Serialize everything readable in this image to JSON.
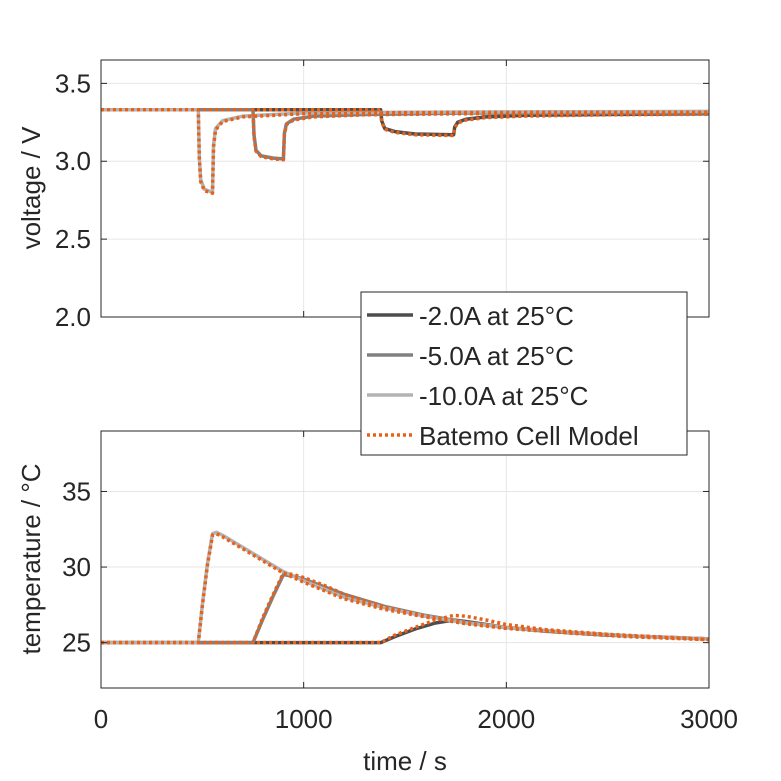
{
  "colors": {
    "minus2A": "#4d4d4d",
    "minus5A": "#808080",
    "minus10A": "#b3b3b3",
    "model": "#e8611a",
    "axis": "#262626",
    "grid": "#e6e6e6"
  },
  "legend": {
    "placement": "overlapping bottom-right of top panel",
    "entries": [
      "-2.0A at 25°C",
      "-5.0A at 25°C",
      "-10.0A at 25°C",
      "Batemo Cell Model"
    ]
  },
  "chart_data": [
    {
      "type": "line",
      "ylabel": "voltage / V",
      "xlim": [
        0,
        3000
      ],
      "ylim": [
        2.0,
        3.65
      ],
      "yticks": [
        2.0,
        2.5,
        3.0,
        3.5
      ],
      "ytick_labels": [
        "2.0",
        "2.5",
        "3.0",
        "3.5"
      ],
      "xticks": [
        0,
        1000,
        2000,
        3000
      ],
      "grid": true,
      "series": [
        {
          "name": "-2.0A at 25°C",
          "x": [
            0,
            1380,
            1385,
            1400,
            1450,
            1550,
            1740,
            1745,
            1760,
            1800,
            1900,
            2100,
            2500,
            3000
          ],
          "y": [
            3.33,
            3.33,
            3.26,
            3.21,
            3.19,
            3.175,
            3.17,
            3.22,
            3.25,
            3.27,
            3.285,
            3.295,
            3.3,
            3.305
          ]
        },
        {
          "name": "-5.0A at 25°C",
          "x": [
            0,
            750,
            755,
            765,
            790,
            850,
            900,
            905,
            915,
            950,
            1050,
            1300,
            1800,
            3000
          ],
          "y": [
            3.33,
            3.33,
            3.17,
            3.07,
            3.035,
            3.02,
            3.015,
            3.18,
            3.24,
            3.27,
            3.29,
            3.3,
            3.31,
            3.31
          ]
        },
        {
          "name": "-10.0A at 25°C",
          "x": [
            0,
            480,
            485,
            492,
            510,
            540,
            550,
            555,
            565,
            600,
            700,
            1000,
            1500,
            3000
          ],
          "y": [
            3.33,
            3.33,
            3.03,
            2.88,
            2.82,
            2.805,
            2.8,
            3.1,
            3.21,
            3.26,
            3.29,
            3.31,
            3.315,
            3.32
          ]
        },
        {
          "name": "Batemo Cell Model",
          "x": [
            0,
            480,
            485,
            492,
            510,
            540,
            550,
            555,
            565,
            600,
            700,
            1000,
            1500,
            3000
          ],
          "y": [
            3.33,
            3.33,
            3.02,
            2.87,
            2.81,
            2.8,
            2.795,
            3.09,
            3.2,
            3.255,
            3.285,
            3.305,
            3.312,
            3.315
          ]
        },
        {
          "name": "",
          "x": [
            0,
            750,
            755,
            765,
            790,
            850,
            900,
            905,
            915,
            950,
            1050,
            1300,
            1800,
            3000
          ],
          "y": [
            3.33,
            3.33,
            3.16,
            3.065,
            3.03,
            3.015,
            3.01,
            3.17,
            3.235,
            3.265,
            3.285,
            3.298,
            3.305,
            3.308
          ]
        },
        {
          "name": "",
          "x": [
            0,
            1380,
            1385,
            1400,
            1450,
            1550,
            1740,
            1745,
            1760,
            1800,
            1900,
            2100,
            2500,
            3000
          ],
          "y": [
            3.33,
            3.33,
            3.255,
            3.205,
            3.185,
            3.17,
            3.165,
            3.215,
            3.245,
            3.265,
            3.28,
            3.29,
            3.298,
            3.302
          ]
        }
      ]
    },
    {
      "type": "line",
      "ylabel": "temperature / °C",
      "xlabel": "time / s",
      "xlim": [
        0,
        3000
      ],
      "ylim": [
        22,
        39
      ],
      "yticks": [
        25,
        30,
        35
      ],
      "ytick_labels": [
        "25",
        "30",
        "35"
      ],
      "xticks": [
        0,
        1000,
        2000,
        3000
      ],
      "xtick_labels": [
        "0",
        "1000",
        "2000",
        "3000"
      ],
      "grid": true,
      "series": [
        {
          "name": "-2.0A at 25°C",
          "x": [
            0,
            1380,
            1450,
            1550,
            1650,
            1740,
            1800,
            1900,
            2000,
            2200,
            2500,
            2800,
            3000
          ],
          "y": [
            25,
            25,
            25.4,
            25.9,
            26.3,
            26.5,
            26.4,
            26.2,
            26.0,
            25.75,
            25.5,
            25.35,
            25.25
          ]
        },
        {
          "name": "-5.0A at 25°C",
          "x": [
            0,
            750,
            800,
            850,
            900,
            950,
            1000,
            1100,
            1200,
            1400,
            1600,
            1800,
            2000,
            2300,
            2600,
            3000
          ],
          "y": [
            25,
            25,
            26.6,
            28.1,
            29.5,
            29.4,
            29.2,
            28.7,
            28.2,
            27.4,
            26.8,
            26.35,
            26.0,
            25.7,
            25.45,
            25.25
          ]
        },
        {
          "name": "-10.0A at 25°C",
          "x": [
            0,
            480,
            500,
            525,
            550,
            570,
            600,
            700,
            800,
            900,
            1000,
            1200,
            1400,
            1600,
            1800,
            2000,
            2300,
            2600,
            3000
          ],
          "y": [
            25,
            25,
            27.5,
            30.2,
            32.2,
            32.3,
            32.1,
            31.3,
            30.5,
            29.7,
            29.1,
            28.0,
            27.3,
            26.75,
            26.3,
            26.0,
            25.7,
            25.45,
            25.25
          ]
        },
        {
          "name": "Batemo Cell Model",
          "x": [
            0,
            480,
            500,
            525,
            550,
            570,
            600,
            700,
            800,
            900,
            1000,
            1200,
            1400,
            1600,
            1800,
            2000,
            2300,
            2600,
            3000
          ],
          "y": [
            25,
            25,
            27.4,
            30.1,
            32.1,
            32.2,
            32.0,
            31.2,
            30.4,
            29.6,
            29.0,
            27.9,
            27.2,
            26.7,
            26.25,
            25.95,
            25.65,
            25.4,
            25.2
          ]
        },
        {
          "name": "",
          "x": [
            0,
            750,
            800,
            850,
            900,
            950,
            1000,
            1100,
            1200,
            1400,
            1600,
            1800,
            2000,
            2300,
            2600,
            3000
          ],
          "y": [
            25,
            25,
            26.7,
            28.2,
            29.6,
            29.5,
            29.3,
            28.8,
            28.2,
            27.35,
            26.75,
            26.3,
            25.95,
            25.65,
            25.4,
            25.2
          ]
        },
        {
          "name": "",
          "x": [
            0,
            1380,
            1450,
            1550,
            1650,
            1740,
            1800,
            1900,
            2000,
            2200,
            2500,
            2800,
            3000
          ],
          "y": [
            25,
            25,
            25.5,
            26.0,
            26.5,
            26.8,
            26.75,
            26.5,
            26.2,
            25.85,
            25.55,
            25.35,
            25.2
          ]
        }
      ]
    }
  ]
}
